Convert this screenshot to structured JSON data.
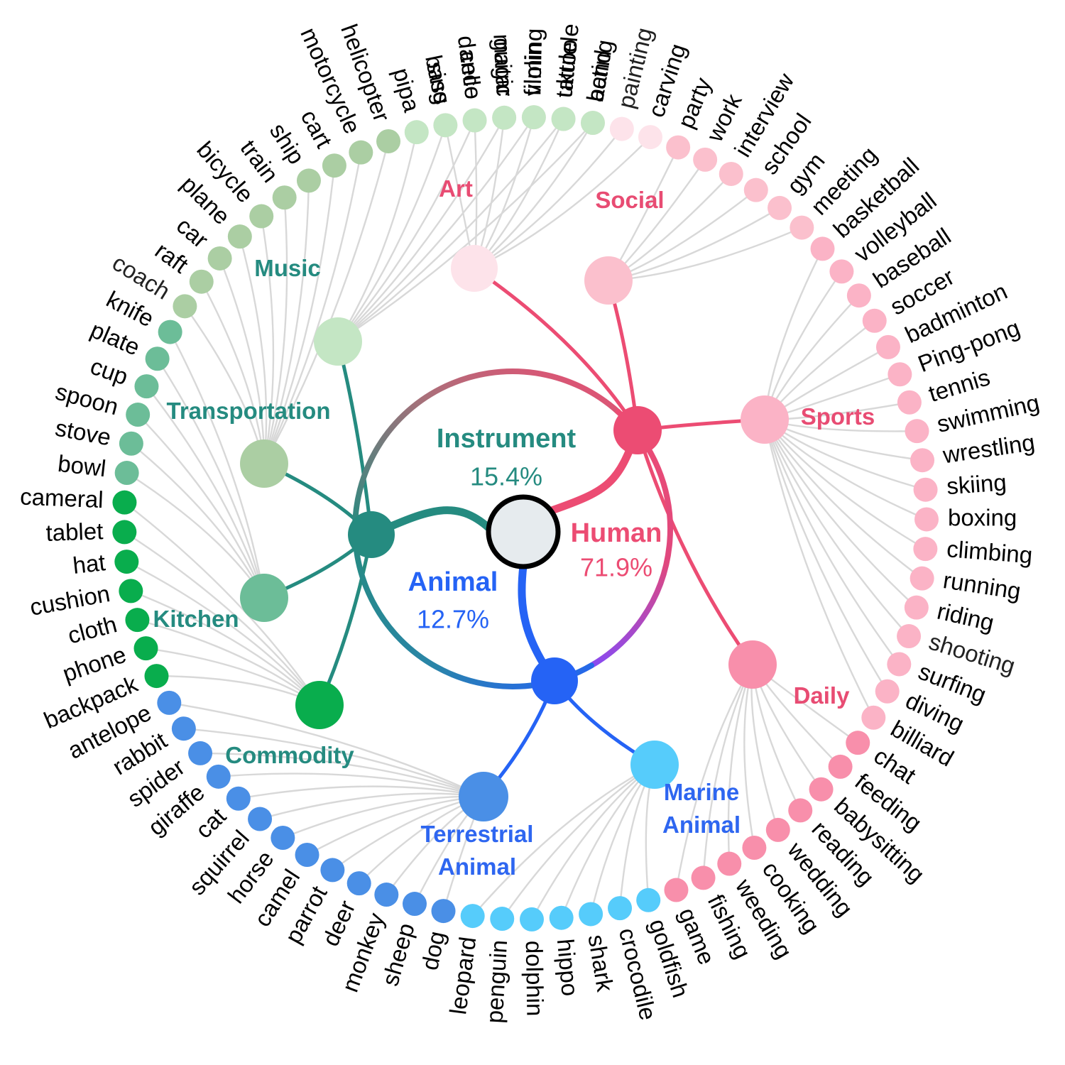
{
  "diagram": {
    "roots": [
      {
        "id": "instrument",
        "name": "Instrument",
        "percent": "15.4%",
        "color": "#258b80"
      },
      {
        "id": "human",
        "name": "Human",
        "percent": "71.9%",
        "color": "#ec4c73"
      },
      {
        "id": "animal",
        "name": "Animal",
        "percent": "12.7%",
        "color": "#2563f5"
      }
    ],
    "categories": [
      {
        "id": "art",
        "name": "Art",
        "root": "human",
        "node_color": "#fde3ea",
        "label_color": "#e84c73",
        "leaves": [
          "sing",
          "dance",
          "magic",
          "filming",
          "tattoo",
          "acting",
          "painting",
          "carving"
        ]
      },
      {
        "id": "social",
        "name": "Social",
        "root": "human",
        "node_color": "#fbc0cd",
        "label_color": "#e84c73",
        "leaves": [
          "party",
          "work",
          "interview",
          "school",
          "gym",
          "meeting"
        ]
      },
      {
        "id": "sports",
        "name": "Sports",
        "root": "human",
        "node_color": "#fbb3c6",
        "label_color": "#e84c73",
        "leaves": [
          "basketball",
          "volleyball",
          "baseball",
          "soccer",
          "badminton",
          "Ping-pong",
          "tennis",
          "swimming",
          "wrestling",
          "skiing",
          "boxing",
          "climbing",
          "running",
          "riding",
          "shooting",
          "surfing",
          "diving",
          "billiard"
        ]
      },
      {
        "id": "daily",
        "name": "Daily",
        "root": "human",
        "node_color": "#f88fab",
        "label_color": "#e84c73",
        "leaves": [
          "chat",
          "feeding",
          "babysitting",
          "reading",
          "wedding",
          "cooking",
          "weeding",
          "fishing",
          "game"
        ]
      },
      {
        "id": "marine",
        "name": "Marine\nAnimal",
        "root": "animal",
        "node_color": "#56ccfb",
        "label_color": "#2e66f0",
        "leaves": [
          "goldfish",
          "crocodile",
          "shark",
          "hippo",
          "dolphin",
          "penguin",
          "leopard"
        ]
      },
      {
        "id": "terrestrial",
        "name": "Terrestrial\nAnimal",
        "root": "animal",
        "node_color": "#4a8fe6",
        "label_color": "#2e66f0",
        "leaves": [
          "dog",
          "sheep",
          "monkey",
          "deer",
          "parrot",
          "camel",
          "horse",
          "squirrel",
          "cat",
          "giraffe",
          "spider",
          "rabbit",
          "antelope"
        ]
      },
      {
        "id": "commodity",
        "name": "Commodity",
        "root": "instrument",
        "node_color": "#09ad4d",
        "label_color": "#258b80",
        "leaves": [
          "backpack",
          "phone",
          "cloth",
          "cushion",
          "hat",
          "tablet",
          "cameral"
        ]
      },
      {
        "id": "kitchen",
        "name": "Kitchen",
        "root": "instrument",
        "node_color": "#6cbd98",
        "label_color": "#258b80",
        "leaves": [
          "bowl",
          "stove",
          "spoon",
          "cup",
          "plate",
          "knife"
        ]
      },
      {
        "id": "transportation",
        "name": "Transportation",
        "root": "instrument",
        "node_color": "#abcea3",
        "label_color": "#258b80",
        "leaves": [
          "coach",
          "raft",
          "car",
          "plane",
          "bicycle",
          "train",
          "ship",
          "cart",
          "motorcycle",
          "helicopter"
        ]
      },
      {
        "id": "music",
        "name": "Music",
        "root": "instrument",
        "node_color": "#c4e6c4",
        "label_color": "#258b80",
        "leaves": [
          "pipa",
          "bass",
          "cello",
          "guitar",
          "violin",
          "ukulele",
          "band"
        ]
      }
    ]
  }
}
